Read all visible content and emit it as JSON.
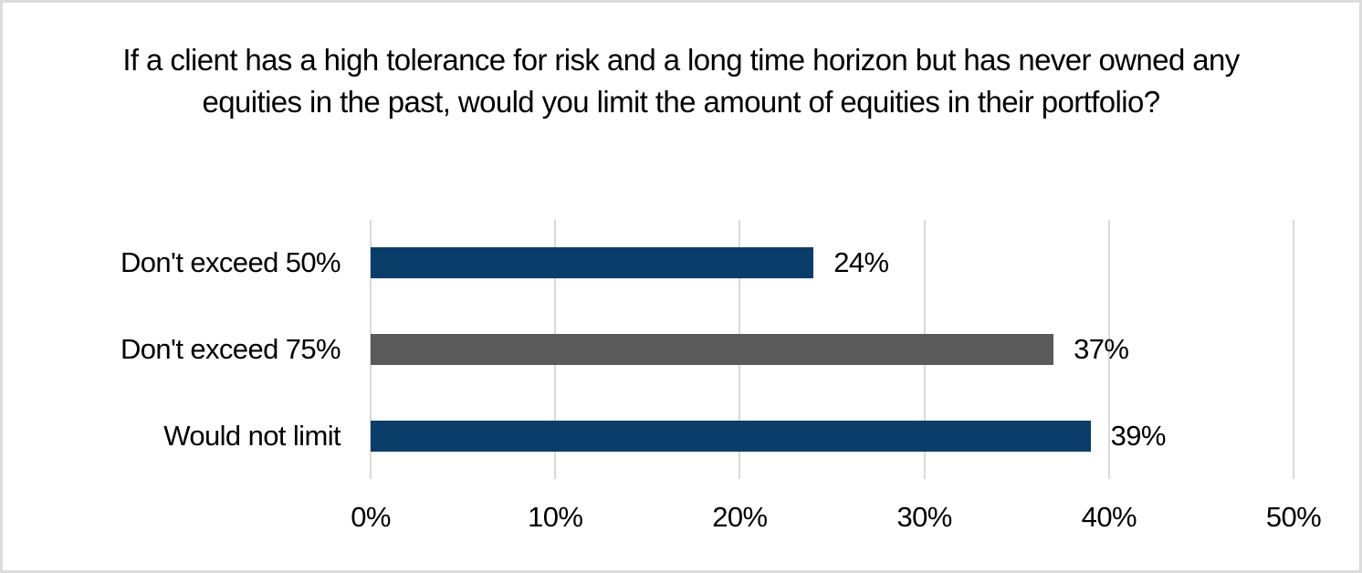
{
  "frame": {
    "background": "#ffffff",
    "border_color": "#dcdcdc"
  },
  "chart_data": {
    "type": "bar",
    "orientation": "horizontal",
    "title": "If a client has a high tolerance for risk and a long time horizon but has never owned any equities in the past, would you limit the amount of equities in their portfolio?",
    "categories": [
      "Don't exceed 50%",
      "Don't exceed 75%",
      "Would not limit"
    ],
    "values": [
      24,
      37,
      39
    ],
    "value_labels": [
      "24%",
      "37%",
      "39%"
    ],
    "bar_colors": [
      "#0b3d6b",
      "#5b5b5b",
      "#0b3d6b"
    ],
    "xlabel": "",
    "ylabel": "",
    "xlim": [
      0,
      50
    ],
    "x_tick_values": [
      0,
      10,
      20,
      30,
      40,
      50
    ],
    "x_tick_labels": [
      "0%",
      "10%",
      "20%",
      "30%",
      "40%",
      "50%"
    ],
    "grid": "vertical",
    "gridline_color": "#d9d9d9",
    "legend": "none",
    "text_color": "#000000"
  }
}
